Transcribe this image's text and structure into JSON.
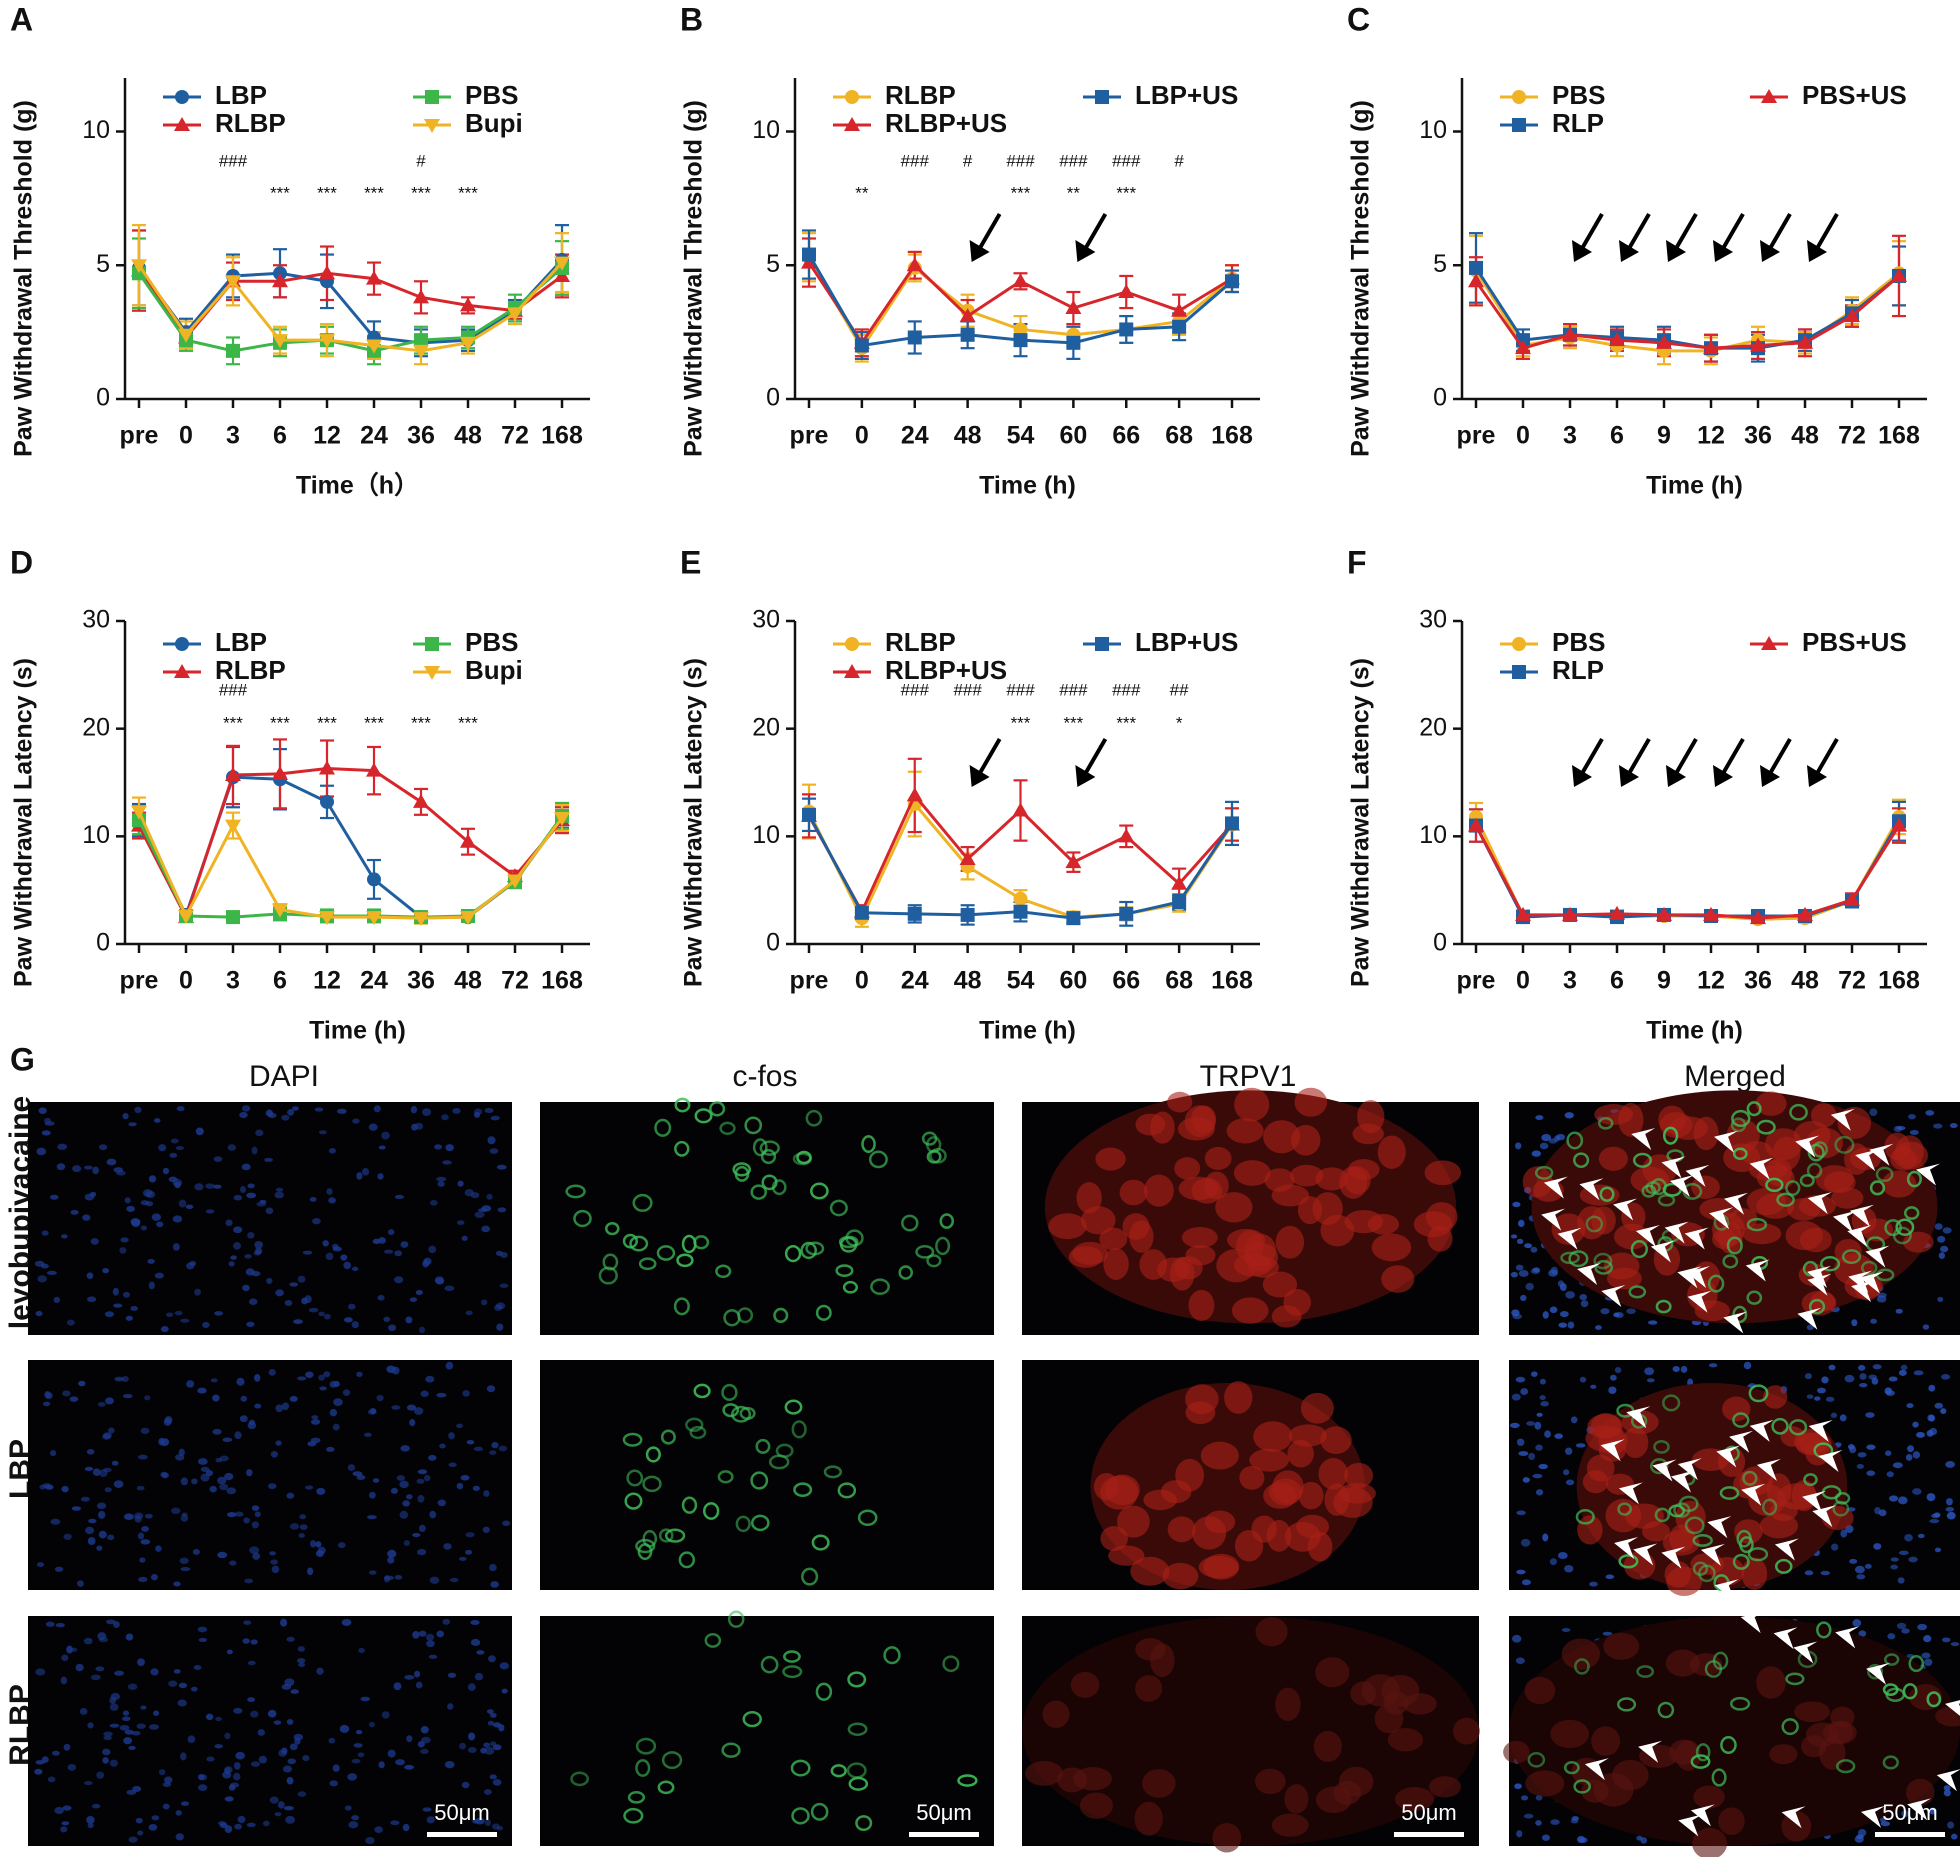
{
  "chart_data": [
    {
      "type": "line",
      "panel_label": "A",
      "x_label": "Time（h）",
      "y_label": "Paw Withdrawal Threshold (g)",
      "categories": [
        "pre",
        "0",
        "3",
        "6",
        "12",
        "24",
        "36",
        "48",
        "72",
        "168"
      ],
      "ylim": [
        0,
        12
      ],
      "yticks": [
        0,
        5,
        10
      ],
      "series": [
        {
          "name": "LBP",
          "color": "#1f5fa0",
          "marker": "circle",
          "values": [
            4.9,
            2.5,
            4.6,
            4.7,
            4.4,
            2.3,
            2.1,
            2.2,
            3.3,
            5.2
          ],
          "errors": [
            1.4,
            0.5,
            0.8,
            0.9,
            1.0,
            0.6,
            0.5,
            0.4,
            0.4,
            1.3
          ]
        },
        {
          "name": "RLBP",
          "color": "#d7262b",
          "marker": "triangle",
          "values": [
            4.8,
            2.3,
            4.4,
            4.4,
            4.7,
            4.5,
            3.8,
            3.5,
            3.3,
            4.6
          ],
          "errors": [
            1.5,
            0.4,
            0.7,
            0.6,
            1.0,
            0.6,
            0.6,
            0.3,
            0.3,
            0.8
          ]
        },
        {
          "name": "PBS",
          "color": "#3cb648",
          "marker": "square",
          "values": [
            4.7,
            2.2,
            1.8,
            2.1,
            2.2,
            1.8,
            2.2,
            2.3,
            3.4,
            4.9
          ],
          "errors": [
            1.3,
            0.4,
            0.5,
            0.5,
            0.5,
            0.5,
            0.5,
            0.4,
            0.5,
            1.0
          ]
        },
        {
          "name": "Bupi",
          "color": "#f0b323",
          "marker": "triangle-down",
          "values": [
            5.0,
            2.4,
            4.4,
            2.2,
            2.2,
            2.0,
            1.8,
            2.1,
            3.2,
            5.1
          ],
          "errors": [
            1.5,
            0.5,
            0.9,
            0.5,
            0.6,
            0.5,
            0.5,
            0.4,
            0.4,
            1.1
          ]
        }
      ],
      "hash_marks": [
        null,
        null,
        "###",
        null,
        null,
        null,
        "#",
        null,
        null,
        null
      ],
      "star_marks": [
        null,
        null,
        null,
        "***",
        "***",
        "***",
        "***",
        "***",
        null,
        null
      ]
    },
    {
      "type": "line",
      "panel_label": "B",
      "x_label": "Time (h)",
      "y_label": "Paw Withdrawal Threshold (g)",
      "categories": [
        "pre",
        "0",
        "24",
        "48",
        "54",
        "60",
        "66",
        "68",
        "168"
      ],
      "ylim": [
        0,
        12
      ],
      "yticks": [
        0,
        5,
        10
      ],
      "series": [
        {
          "name": "RLBP",
          "color": "#f0b323",
          "marker": "circle",
          "values": [
            5.3,
            1.9,
            4.9,
            3.3,
            2.6,
            2.4,
            2.6,
            2.9,
            4.5
          ],
          "errors": [
            0.9,
            0.5,
            0.5,
            0.6,
            0.5,
            0.4,
            0.5,
            0.5,
            0.5
          ]
        },
        {
          "name": "RLBP+US",
          "color": "#d7262b",
          "marker": "triangle",
          "values": [
            5.1,
            2.1,
            5.0,
            3.1,
            4.4,
            3.4,
            4.0,
            3.3,
            4.5
          ],
          "errors": [
            0.9,
            0.5,
            0.5,
            0.6,
            0.3,
            0.6,
            0.6,
            0.6,
            0.5
          ]
        },
        {
          "name": "LBP+US",
          "color": "#1f5fa0",
          "marker": "square",
          "values": [
            5.4,
            2.0,
            2.3,
            2.4,
            2.2,
            2.1,
            2.6,
            2.7,
            4.4
          ],
          "errors": [
            0.9,
            0.5,
            0.6,
            0.5,
            0.6,
            0.6,
            0.5,
            0.5,
            0.4
          ]
        }
      ],
      "hash_marks": [
        null,
        null,
        "###",
        "#",
        "###",
        "###",
        "###",
        "#",
        null
      ],
      "star_marks": [
        null,
        "**",
        null,
        null,
        "***",
        "**",
        "***",
        null,
        null
      ]
    },
    {
      "type": "line",
      "panel_label": "C",
      "x_label": "Time (h)",
      "y_label": "Paw Withdrawal Threshold (g)",
      "categories": [
        "pre",
        "0",
        "3",
        "6",
        "9",
        "12",
        "36",
        "48",
        "72",
        "168"
      ],
      "ylim": [
        0,
        12
      ],
      "yticks": [
        0,
        5,
        10
      ],
      "series": [
        {
          "name": "PBS",
          "color": "#f0b323",
          "marker": "circle",
          "values": [
            4.8,
            2.0,
            2.3,
            2.0,
            1.8,
            1.8,
            2.2,
            2.1,
            3.3,
            4.7
          ],
          "errors": [
            1.3,
            0.4,
            0.4,
            0.4,
            0.5,
            0.5,
            0.5,
            0.4,
            0.5,
            1.2
          ]
        },
        {
          "name": "RLP",
          "color": "#1f5fa0",
          "marker": "square",
          "values": [
            4.9,
            2.2,
            2.4,
            2.3,
            2.2,
            1.9,
            1.9,
            2.2,
            3.2,
            4.6
          ],
          "errors": [
            1.3,
            0.4,
            0.4,
            0.4,
            0.5,
            0.5,
            0.5,
            0.4,
            0.5,
            1.1
          ]
        },
        {
          "name": "PBS+US",
          "color": "#d7262b",
          "marker": "triangle",
          "values": [
            4.4,
            1.9,
            2.4,
            2.2,
            2.1,
            1.9,
            2.0,
            2.1,
            3.1,
            4.6
          ],
          "errors": [
            0.9,
            0.4,
            0.4,
            0.4,
            0.5,
            0.5,
            0.5,
            0.5,
            0.4,
            1.5
          ]
        }
      ]
    },
    {
      "type": "line",
      "panel_label": "D",
      "x_label": "Time (h)",
      "y_label": "Paw Withdrawal Latency (s)",
      "categories": [
        "pre",
        "0",
        "3",
        "6",
        "12",
        "24",
        "36",
        "48",
        "72",
        "168"
      ],
      "ylim": [
        0,
        30
      ],
      "yticks": [
        0,
        10,
        20,
        30
      ],
      "series": [
        {
          "name": "LBP",
          "color": "#1f5fa0",
          "marker": "circle",
          "values": [
            11.5,
            2.7,
            15.5,
            15.3,
            13.2,
            6.0,
            2.5,
            2.5,
            5.8,
            11.8
          ],
          "errors": [
            1.5,
            0.4,
            2.8,
            2.8,
            1.5,
            1.8,
            0.5,
            0.4,
            0.6,
            1.0
          ]
        },
        {
          "name": "RLBP",
          "color": "#d7262b",
          "marker": "triangle",
          "values": [
            11.0,
            2.5,
            15.7,
            15.8,
            16.3,
            16.1,
            13.2,
            9.5,
            6.3,
            11.5
          ],
          "errors": [
            1.2,
            0.4,
            2.7,
            3.2,
            2.6,
            2.2,
            1.2,
            1.2,
            0.5,
            1.2
          ]
        },
        {
          "name": "PBS",
          "color": "#3cb648",
          "marker": "square",
          "values": [
            11.5,
            2.6,
            2.5,
            2.8,
            2.6,
            2.6,
            2.5,
            2.6,
            5.8,
            11.9
          ],
          "errors": [
            1.3,
            0.4,
            0.4,
            0.6,
            0.6,
            0.6,
            0.5,
            0.4,
            0.6,
            1.2
          ]
        },
        {
          "name": "Bupi",
          "color": "#f0b323",
          "marker": "triangle-down",
          "values": [
            12.3,
            2.6,
            11.0,
            3.2,
            2.5,
            2.5,
            2.4,
            2.5,
            5.9,
            11.7
          ],
          "errors": [
            1.3,
            0.4,
            1.2,
            0.5,
            0.5,
            0.5,
            0.5,
            0.4,
            0.6,
            1.2
          ]
        }
      ],
      "hash_marks": [
        null,
        null,
        "###",
        null,
        null,
        null,
        null,
        null,
        null,
        null
      ],
      "star_marks": [
        null,
        null,
        "***",
        "***",
        "***",
        "***",
        "***",
        "***",
        null,
        null
      ]
    },
    {
      "type": "line",
      "panel_label": "E",
      "x_label": "Time (h)",
      "y_label": "Paw Withdrawal Latency (s)",
      "categories": [
        "pre",
        "0",
        "24",
        "48",
        "54",
        "60",
        "66",
        "68",
        "168"
      ],
      "ylim": [
        0,
        30
      ],
      "yticks": [
        0,
        10,
        20,
        30
      ],
      "series": [
        {
          "name": "RLBP",
          "color": "#f0b323",
          "marker": "circle",
          "values": [
            12.3,
            2.4,
            13.0,
            7.2,
            4.2,
            2.5,
            2.8,
            3.7,
            11.1
          ],
          "errors": [
            2.5,
            0.8,
            3.0,
            1.2,
            0.8,
            0.5,
            0.6,
            0.7,
            1.5
          ]
        },
        {
          "name": "RLBP+US",
          "color": "#d7262b",
          "marker": "triangle",
          "values": [
            11.9,
            3.0,
            13.8,
            7.9,
            12.4,
            7.6,
            10.0,
            5.6,
            11.1
          ],
          "errors": [
            2.0,
            0.6,
            3.4,
            1.1,
            2.8,
            0.9,
            1.0,
            1.4,
            1.5
          ]
        },
        {
          "name": "LBP+US",
          "color": "#1f5fa0",
          "marker": "square",
          "values": [
            12.0,
            2.9,
            2.8,
            2.7,
            3.0,
            2.4,
            2.8,
            3.9,
            11.2
          ],
          "errors": [
            1.5,
            0.6,
            0.8,
            0.9,
            0.9,
            0.5,
            1.1,
            0.7,
            2.0
          ]
        }
      ],
      "hash_marks": [
        null,
        null,
        "###",
        "###",
        "###",
        "###",
        "###",
        "##",
        null
      ],
      "star_marks": [
        null,
        null,
        null,
        null,
        "***",
        "***",
        "***",
        "*",
        null
      ]
    },
    {
      "type": "line",
      "panel_label": "F",
      "x_label": "Time (h)",
      "y_label": "Paw Withdrawal Latency (s)",
      "categories": [
        "pre",
        "0",
        "3",
        "6",
        "9",
        "12",
        "36",
        "48",
        "72",
        "168"
      ],
      "ylim": [
        0,
        30
      ],
      "yticks": [
        0,
        10,
        20,
        30
      ],
      "series": [
        {
          "name": "PBS",
          "color": "#f0b323",
          "marker": "circle",
          "values": [
            11.8,
            2.6,
            2.7,
            2.6,
            2.6,
            2.6,
            2.3,
            2.4,
            4.0,
            11.8
          ],
          "errors": [
            1.3,
            0.4,
            0.4,
            0.3,
            0.4,
            0.4,
            0.3,
            0.4,
            0.6,
            1.6
          ]
        },
        {
          "name": "RLP",
          "color": "#1f5fa0",
          "marker": "square",
          "values": [
            11.0,
            2.5,
            2.7,
            2.5,
            2.7,
            2.6,
            2.6,
            2.6,
            4.0,
            11.4
          ],
          "errors": [
            1.5,
            0.4,
            0.3,
            0.3,
            0.4,
            0.4,
            0.3,
            0.4,
            0.6,
            1.8
          ]
        },
        {
          "name": "PBS+US",
          "color": "#d7262b",
          "marker": "triangle",
          "values": [
            11.0,
            2.7,
            2.7,
            2.8,
            2.7,
            2.7,
            2.4,
            2.7,
            4.1,
            11.0
          ],
          "errors": [
            1.5,
            0.4,
            0.4,
            0.3,
            0.3,
            0.4,
            0.3,
            0.4,
            0.6,
            1.6
          ]
        }
      ]
    }
  ],
  "image_panel": {
    "label": "G",
    "columns": [
      "DAPI",
      "c-fos",
      "TRPV1",
      "Merged"
    ],
    "rows": [
      "levobupivacaine",
      "LBP",
      "RLBP"
    ],
    "scale_bar": "50μm"
  }
}
